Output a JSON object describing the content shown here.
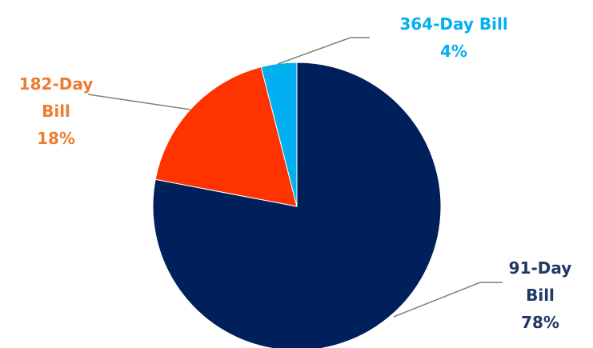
{
  "chart_data": {
    "type": "pie",
    "title": "",
    "slices": [
      {
        "name": "91-Day Bill",
        "label_lines": [
          "91-Day",
          "Bill"
        ],
        "value": 78,
        "value_label": "78%",
        "color": "#00205B"
      },
      {
        "name": "182-Day Bill",
        "label_lines": [
          "182-Day",
          "Bill"
        ],
        "value": 18,
        "value_label": "18%",
        "color": "#FF3300"
      },
      {
        "name": "364-Day Bill",
        "label_lines": [
          "364-Day Bill"
        ],
        "value": 4,
        "value_label": "4%",
        "color": "#00B0F0"
      }
    ],
    "label_colors": {
      "91-Day Bill": "#1F3864",
      "182-Day Bill": "#ED7D31",
      "364-Day Bill": "#00B0F0"
    },
    "leader_line_color": "#7F7F7F",
    "start_angle": "12 o'clock",
    "direction": "clockwise"
  }
}
